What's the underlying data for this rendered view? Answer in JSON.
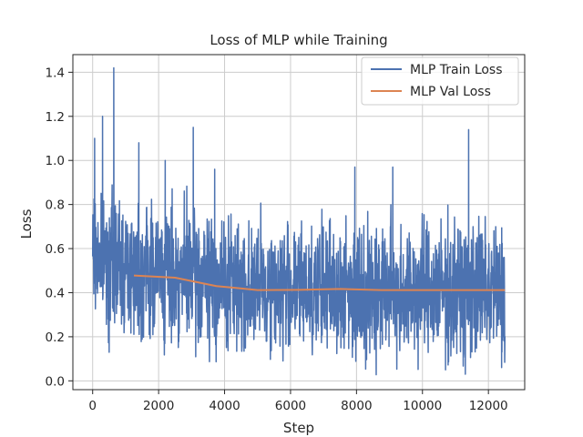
{
  "chart_data": {
    "type": "line",
    "title": "Loss of MLP while Training",
    "xlabel": "Step",
    "ylabel": "Loss",
    "xlim": [
      -600,
      13100
    ],
    "ylim": [
      -0.04,
      1.48
    ],
    "xticks": [
      0,
      2000,
      4000,
      6000,
      8000,
      10000,
      12000
    ],
    "yticks": [
      0.0,
      0.2,
      0.4,
      0.6,
      0.8,
      1.0,
      1.2,
      1.4
    ],
    "grid": true,
    "legend_position": "top-right",
    "series": [
      {
        "name": "MLP Train Loss",
        "color": "#4c72b0",
        "style": "noisy",
        "x_range": [
          0,
          12500
        ],
        "envelope_x": [
          0,
          1000,
          2000,
          3000,
          4000,
          5000,
          6000,
          8000,
          10000,
          12500
        ],
        "envelope_low": [
          0.3,
          0.2,
          0.17,
          0.14,
          0.12,
          0.11,
          0.1,
          0.09,
          0.08,
          0.08
        ],
        "envelope_high": [
          0.86,
          0.84,
          0.82,
          0.8,
          0.76,
          0.74,
          0.74,
          0.74,
          0.74,
          0.74
        ],
        "spikes": [
          {
            "x": 60,
            "y": 1.1
          },
          {
            "x": 300,
            "y": 1.2
          },
          {
            "x": 640,
            "y": 1.42
          },
          {
            "x": 1400,
            "y": 1.08
          },
          {
            "x": 2200,
            "y": 1.0
          },
          {
            "x": 3050,
            "y": 1.15
          },
          {
            "x": 3700,
            "y": 0.96
          },
          {
            "x": 7950,
            "y": 0.97
          },
          {
            "x": 9100,
            "y": 0.97
          },
          {
            "x": 11400,
            "y": 1.14
          }
        ],
        "dips": [
          {
            "x": 500,
            "y": 0.13
          },
          {
            "x": 10700,
            "y": 0.05
          },
          {
            "x": 11300,
            "y": 0.03
          },
          {
            "x": 12400,
            "y": 0.06
          }
        ]
      },
      {
        "name": "MLP Val Loss",
        "color": "#dd8452",
        "x": [
          1250,
          2500,
          3750,
          5000,
          6250,
          7500,
          8750,
          10000,
          11250,
          12500
        ],
        "y": [
          0.478,
          0.468,
          0.43,
          0.412,
          0.413,
          0.417,
          0.412,
          0.412,
          0.412,
          0.412
        ]
      }
    ]
  }
}
